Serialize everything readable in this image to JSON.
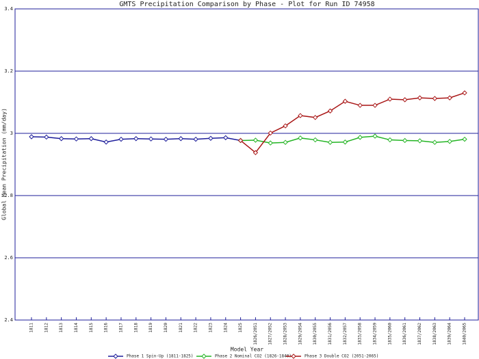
{
  "chart_data": {
    "type": "line",
    "title": "GMTS Precipitation Comparison by Phase - Plot for Run ID 74958",
    "x_label": "Model Year",
    "y_label": "Global Mean Precipitation (mm/day)",
    "categories": [
      "1811",
      "1812",
      "1813",
      "1814",
      "1815",
      "1816",
      "1817",
      "1818",
      "1819",
      "1820",
      "1821",
      "1822",
      "1823",
      "1824",
      "1825",
      "1826/2051",
      "1827/2052",
      "1828/2053",
      "1829/2054",
      "1830/2055",
      "1831/2056",
      "1832/2057",
      "1833/2058",
      "1834/2059",
      "1835/2060",
      "1836/2061",
      "1837/2062",
      "1838/2063",
      "1839/2064",
      "1840/2065"
    ],
    "series": [
      {
        "name": "Phase 1 Spin-Up (1811-1825)",
        "color": "#1c1c9a",
        "values": [
          2.989,
          2.988,
          2.983,
          2.982,
          2.983,
          2.972,
          2.981,
          2.983,
          2.982,
          2.981,
          2.983,
          2.981,
          2.984,
          2.986,
          2.977,
          null,
          null,
          null,
          null,
          null,
          null,
          null,
          null,
          null,
          null,
          null,
          null,
          null,
          null,
          null
        ]
      },
      {
        "name": "Phase 2 Nominal CO2 (1826-1840)",
        "color": "#22b422",
        "values": [
          null,
          null,
          null,
          null,
          null,
          null,
          null,
          null,
          null,
          null,
          null,
          null,
          null,
          null,
          2.977,
          2.978,
          2.969,
          2.971,
          2.985,
          2.979,
          2.971,
          2.972,
          2.987,
          2.991,
          2.979,
          2.977,
          2.976,
          2.971,
          2.974,
          2.981
        ]
      },
      {
        "name": "Phase 3 Double CO2 (2051-2065)",
        "color": "#a81414",
        "values": [
          null,
          null,
          null,
          null,
          null,
          null,
          null,
          null,
          null,
          null,
          null,
          null,
          null,
          null,
          2.977,
          2.938,
          3.001,
          3.024,
          3.057,
          3.051,
          3.072,
          3.103,
          3.09,
          3.09,
          3.11,
          3.108,
          3.114,
          3.112,
          3.114,
          3.13
        ]
      }
    ],
    "ylim": [
      2.4,
      3.4
    ],
    "yticks": [
      2.4,
      2.6,
      2.8,
      3,
      3.2,
      3.4
    ],
    "grid": true,
    "legend": "bottom"
  }
}
